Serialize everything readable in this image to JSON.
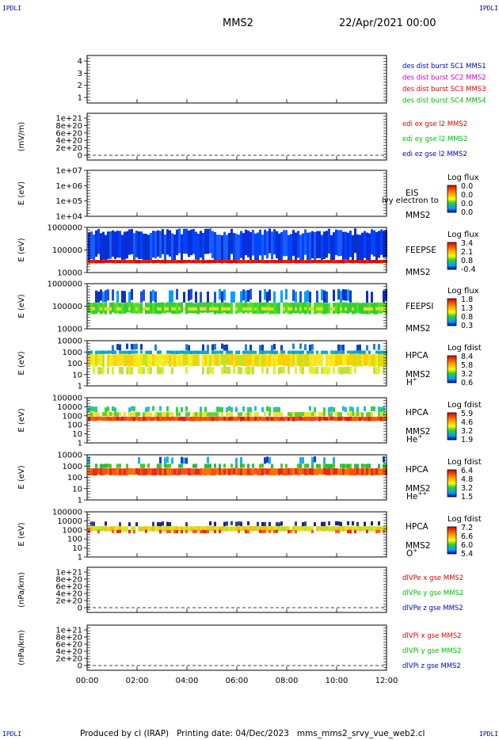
{
  "page": {
    "corner_label": "IPDLI",
    "spacecraft": "MMS2",
    "date": "22/Apr/2021 00:00",
    "footer": "Produced by cl (IRAP)   Printing date: 04/Dec/2023   mms_mms2_srvy_vue_web2.cl"
  },
  "chart_data": {
    "type": "heatmap",
    "x_ticks": [
      "00:00",
      "02:00",
      "04:00",
      "06:00",
      "08:00",
      "10:00",
      "12:00"
    ],
    "x_range_hours": [
      0,
      12
    ],
    "panels": [
      {
        "id": "burst",
        "kind": "lines",
        "ylabel": "",
        "yticks": [
          "4",
          "3",
          "2",
          "1"
        ],
        "legend": [
          {
            "text": "des dist burst SC1 MMS1",
            "color": "#0000cc"
          },
          {
            "text": "des dist burst SC2 MMS2",
            "color": "#cc00cc"
          },
          {
            "text": "des dist burst SC3 MMS3",
            "color": "#dd0000"
          },
          {
            "text": "des dist burst SC4 MMS4",
            "color": "#00bb00"
          }
        ]
      },
      {
        "id": "edi",
        "kind": "lines",
        "ylabel": "(mV/m)",
        "yticks": [
          "1e+21",
          "8e+20",
          "6e+20",
          "4e+20",
          "2e+20",
          "0"
        ],
        "legend": [
          {
            "text": "edi ex gse l2 MMS2",
            "color": "#dd0000"
          },
          {
            "text": "edi ey gse l2 MMS2",
            "color": "#00bb00"
          },
          {
            "text": "edi ez gse l2 MMS2",
            "color": "#0000cc"
          }
        ]
      },
      {
        "id": "eis",
        "kind": "spectrogram",
        "ylabel": "E (eV)",
        "yticks": [
          "1e+07",
          "1e+06",
          "1e+05",
          "1e+04"
        ],
        "labels": [
          "EIS",
          "MMS2"
        ],
        "overlay": "lvy electron to",
        "scale_title": "Log flux",
        "scale": [
          "0.0",
          "0.0",
          "0.0",
          "0.0"
        ]
      },
      {
        "id": "feepse",
        "kind": "spectrogram",
        "ylabel": "E (eV)",
        "yticks": [
          "1000000",
          "100000",
          "10000"
        ],
        "labels": [
          "FEEPSE",
          "MMS2"
        ],
        "scale_title": "Log flux",
        "scale": [
          "3.4",
          "2.1",
          "0.8",
          "-0.4"
        ]
      },
      {
        "id": "feepsi",
        "kind": "spectrogram",
        "ylabel": "E (eV)",
        "yticks": [
          "1000000",
          "100000",
          "10000"
        ],
        "labels": [
          "FEEPSI",
          "MMS2"
        ],
        "scale_title": "Log flux",
        "scale": [
          "1.8",
          "1.3",
          "0.8",
          "0.3"
        ]
      },
      {
        "id": "hpca_h",
        "kind": "spectrogram",
        "ylabel": "E (eV)",
        "yticks": [
          "10000",
          "1000",
          "100",
          "10",
          "1"
        ],
        "labels": [
          "HPCA",
          "MMS2",
          "H+"
        ],
        "scale_title": "Log fdist",
        "scale": [
          "8.4",
          "5.8",
          "3.2",
          "0.6"
        ]
      },
      {
        "id": "hpca_he",
        "kind": "spectrogram",
        "ylabel": "E (eV)",
        "yticks": [
          "100000",
          "10000",
          "1000",
          "100",
          "10",
          "1"
        ],
        "labels": [
          "HPCA",
          "MMS2",
          "He+"
        ],
        "scale_title": "Log fdist",
        "scale": [
          "5.9",
          "4.6",
          "3.2",
          "1.9"
        ]
      },
      {
        "id": "hpca_hepp",
        "kind": "spectrogram",
        "ylabel": "E (eV)",
        "yticks": [
          "10000",
          "1000",
          "100",
          "10",
          "1"
        ],
        "labels": [
          "HPCA",
          "MMS2",
          "He++"
        ],
        "scale_title": "Log fdist",
        "scale": [
          "6.4",
          "4.8",
          "3.2",
          "1.5"
        ]
      },
      {
        "id": "hpca_o",
        "kind": "spectrogram",
        "ylabel": "E (eV)",
        "yticks": [
          "100000",
          "10000",
          "1000",
          "100",
          "10",
          "1"
        ],
        "labels": [
          "HPCA",
          "MMS2",
          "O+"
        ],
        "scale_title": "Log fdist",
        "scale": [
          "7.2",
          "6.6",
          "6.0",
          "5.4"
        ]
      },
      {
        "id": "divpe",
        "kind": "lines",
        "ylabel": "(nPa/km)",
        "yticks": [
          "1e+21",
          "8e+20",
          "6e+20",
          "4e+20",
          "2e+20",
          "0"
        ],
        "legend": [
          {
            "text": "dlVPe x gse MMS2",
            "color": "#dd0000"
          },
          {
            "text": "dlVPe y gse MMS2",
            "color": "#00bb00"
          },
          {
            "text": "dlVPe z gse MMS2",
            "color": "#0000cc"
          }
        ]
      },
      {
        "id": "divpi",
        "kind": "lines",
        "ylabel": "(nPa/km)",
        "yticks": [
          "1e+21",
          "8e+20",
          "6e+20",
          "4e+20",
          "2e+20",
          "0"
        ],
        "legend": [
          {
            "text": "dlVPi x gse MMS2",
            "color": "#dd0000"
          },
          {
            "text": "dlVPi y gse MMS2",
            "color": "#00bb00"
          },
          {
            "text": "dlVPi z gse MMS2",
            "color": "#0000cc"
          }
        ]
      }
    ]
  }
}
